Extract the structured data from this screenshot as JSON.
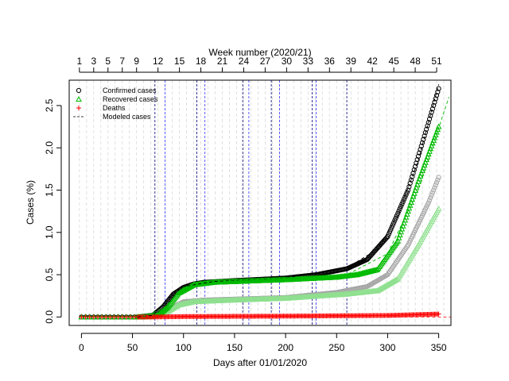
{
  "chart_data": {
    "type": "scatter",
    "title": "",
    "xlabel": "Days after 01/01/2020",
    "ylabel": "Cases (%)",
    "top_axis_label": "Week number (2020/21)",
    "xlim": [
      -12,
      362
    ],
    "ylim": [
      -0.1,
      2.8
    ],
    "x_ticks": [
      0,
      50,
      100,
      150,
      200,
      250,
      300,
      350
    ],
    "y_ticks": [
      0.0,
      0.5,
      1.0,
      1.5,
      2.0,
      2.5
    ],
    "y_tick_labels": [
      "0.0",
      "0.5",
      "1.0",
      "1.5",
      "2.0",
      "2.5"
    ],
    "week_ticks": [
      {
        "x": -2,
        "label": "1"
      },
      {
        "x": 12,
        "label": "3"
      },
      {
        "x": 26,
        "label": "5"
      },
      {
        "x": 40,
        "label": "7"
      },
      {
        "x": 54,
        "label": "9"
      },
      {
        "x": 75,
        "label": "12"
      },
      {
        "x": 96,
        "label": "15"
      },
      {
        "x": 117,
        "label": "18"
      },
      {
        "x": 138,
        "label": "21"
      },
      {
        "x": 159,
        "label": "24"
      },
      {
        "x": 180,
        "label": "27"
      },
      {
        "x": 201,
        "label": "30"
      },
      {
        "x": 222,
        "label": "33"
      },
      {
        "x": 243,
        "label": "36"
      },
      {
        "x": 264,
        "label": "39"
      },
      {
        "x": 285,
        "label": "42"
      },
      {
        "x": 306,
        "label": "45"
      },
      {
        "x": 327,
        "label": "48"
      },
      {
        "x": 348,
        "label": "51"
      }
    ],
    "vertical_markers_black": [
      72,
      113,
      158,
      186,
      226,
      260
    ],
    "vertical_markers_blue": [
      82,
      121,
      164,
      194,
      230
    ],
    "legend_position": "top-left",
    "grid": "vertical dashed gray lines every week",
    "series": [
      {
        "name": "Confirmed cases",
        "marker": "circle",
        "color": "#000000",
        "curve": [
          [
            0,
            0
          ],
          [
            55,
            0
          ],
          [
            70,
            0.02
          ],
          [
            80,
            0.12
          ],
          [
            90,
            0.27
          ],
          [
            100,
            0.35
          ],
          [
            110,
            0.39
          ],
          [
            120,
            0.41
          ],
          [
            150,
            0.43
          ],
          [
            200,
            0.46
          ],
          [
            230,
            0.5
          ],
          [
            260,
            0.57
          ],
          [
            280,
            0.68
          ],
          [
            300,
            0.95
          ],
          [
            320,
            1.5
          ],
          [
            340,
            2.3
          ],
          [
            350,
            2.7
          ]
        ]
      },
      {
        "name": "Confirmed cases (light)",
        "marker": "circle",
        "color": "#a6a6a6",
        "curve": [
          [
            60,
            0
          ],
          [
            75,
            0.03
          ],
          [
            90,
            0.12
          ],
          [
            100,
            0.18
          ],
          [
            120,
            0.2
          ],
          [
            200,
            0.23
          ],
          [
            250,
            0.29
          ],
          [
            280,
            0.36
          ],
          [
            300,
            0.5
          ],
          [
            320,
            0.85
          ],
          [
            340,
            1.35
          ],
          [
            350,
            1.65
          ]
        ]
      },
      {
        "name": "Recovered cases",
        "marker": "triangle",
        "color": "#00bb00",
        "curve": [
          [
            0,
            0
          ],
          [
            60,
            0
          ],
          [
            75,
            0.02
          ],
          [
            85,
            0.12
          ],
          [
            95,
            0.28
          ],
          [
            110,
            0.38
          ],
          [
            130,
            0.41
          ],
          [
            200,
            0.44
          ],
          [
            250,
            0.47
          ],
          [
            270,
            0.5
          ],
          [
            290,
            0.56
          ],
          [
            310,
            0.9
          ],
          [
            330,
            1.6
          ],
          [
            350,
            2.25
          ]
        ]
      },
      {
        "name": "Recovered cases (light)",
        "marker": "triangle",
        "color": "#8fe08f",
        "curve": [
          [
            65,
            0
          ],
          [
            80,
            0.03
          ],
          [
            95,
            0.14
          ],
          [
            110,
            0.18
          ],
          [
            150,
            0.2
          ],
          [
            200,
            0.22
          ],
          [
            260,
            0.27
          ],
          [
            290,
            0.31
          ],
          [
            310,
            0.45
          ],
          [
            330,
            0.85
          ],
          [
            350,
            1.28
          ]
        ]
      },
      {
        "name": "Deaths",
        "marker": "plus",
        "color": "#ff0000",
        "curve": [
          [
            0,
            0
          ],
          [
            70,
            0
          ],
          [
            100,
            0.005
          ],
          [
            200,
            0.01
          ],
          [
            300,
            0.018
          ],
          [
            350,
            0.035
          ]
        ]
      },
      {
        "name": "Modeled cases",
        "marker": "dash",
        "color": "#000000",
        "curve": [
          [
            55,
            0
          ],
          [
            70,
            0.02
          ],
          [
            85,
            0.22
          ],
          [
            100,
            0.36
          ],
          [
            130,
            0.42
          ],
          [
            200,
            0.46
          ],
          [
            260,
            0.58
          ],
          [
            290,
            0.8
          ],
          [
            310,
            1.2
          ],
          [
            330,
            1.85
          ],
          [
            350,
            2.75
          ]
        ]
      }
    ],
    "modeled_recovered": [
      [
        60,
        0
      ],
      [
        80,
        0.1
      ],
      [
        100,
        0.35
      ],
      [
        140,
        0.42
      ],
      [
        260,
        0.5
      ],
      [
        300,
        0.75
      ],
      [
        330,
        1.5
      ],
      [
        360,
        2.6
      ]
    ]
  }
}
